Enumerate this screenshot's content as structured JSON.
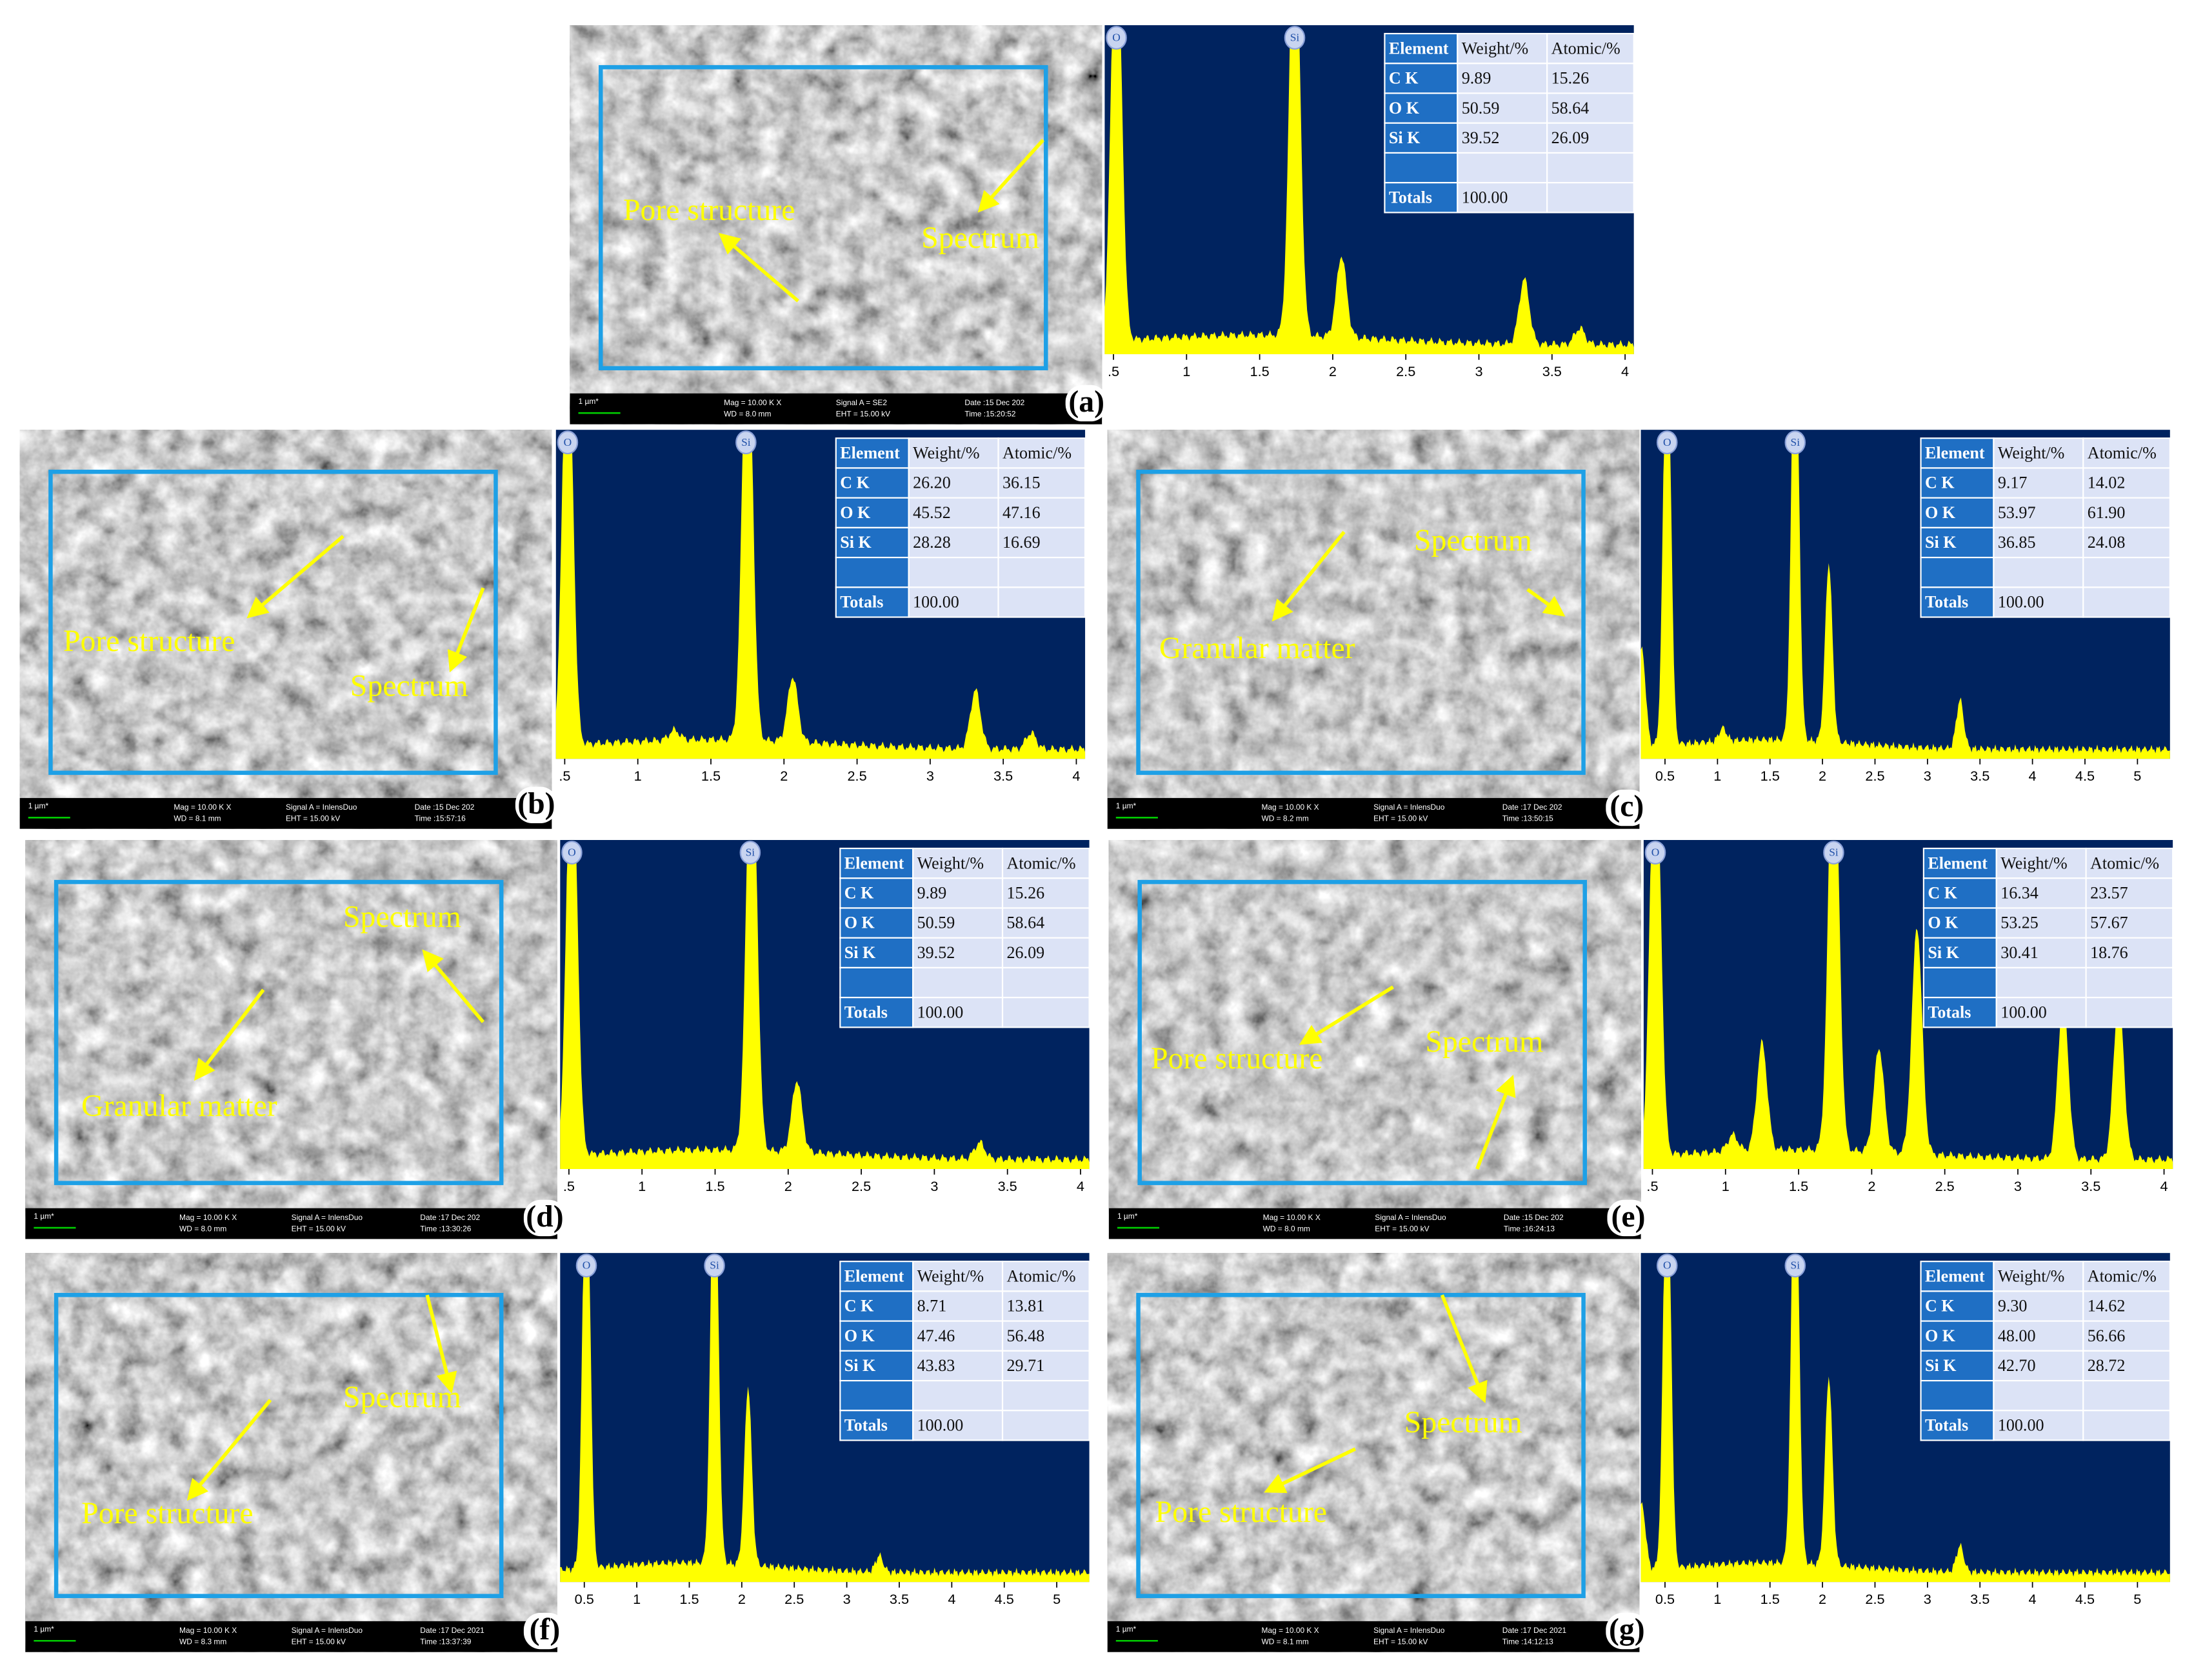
{
  "panels": [
    {
      "label": "(a)",
      "sem": {
        "scale": "1 µm*",
        "mag": "Mag =  10.00 K X",
        "wd": "WD =  8.0 mm",
        "signal": "Signal A = SE2",
        "eht": "EHT = 15.00 kV",
        "date": "Date :15 Dec 202",
        "time": "Time :15:20:52"
      },
      "annotations": [
        "Pore structure",
        "Spectrum"
      ],
      "spectrum": {
        "peak_labels": [
          "O",
          "Si"
        ],
        "xlim": [
          0.44,
          4.06
        ],
        "xticks": [
          {
            "value": 0.5,
            "label": ".5"
          },
          1,
          1.5,
          2,
          2.5,
          3,
          3.5,
          4
        ]
      },
      "table": {
        "header": [
          "Element",
          "Weight/%",
          "Atomic/%"
        ],
        "rows": [
          [
            "C K",
            "9.89",
            "15.26"
          ],
          [
            "O K",
            "50.59",
            "58.64"
          ],
          [
            "Si K",
            "39.52",
            "26.09"
          ]
        ],
        "totals": [
          "Totals",
          "100.00"
        ]
      }
    },
    {
      "label": "(b)",
      "sem": {
        "scale": "1 µm*",
        "mag": "Mag =  10.00 K X",
        "wd": "WD =  8.1 mm",
        "signal": "Signal A = InlensDuo",
        "eht": "EHT = 15.00 kV",
        "date": "Date :15 Dec 202",
        "time": "Time :15:57:16"
      },
      "annotations": [
        "Pore structure",
        "Spectrum"
      ],
      "spectrum": {
        "peak_labels": [
          "O",
          "Si"
        ],
        "xlim": [
          0.44,
          4.06
        ],
        "xticks": [
          {
            "value": 0.5,
            "label": ".5"
          },
          1,
          1.5,
          2,
          2.5,
          3,
          3.5,
          4
        ]
      },
      "table": {
        "header": [
          "Element",
          "Weight/%",
          "Atomic/%"
        ],
        "rows": [
          [
            "C K",
            "26.20",
            "36.15"
          ],
          [
            "O K",
            "45.52",
            "47.16"
          ],
          [
            "Si K",
            "28.28",
            "16.69"
          ]
        ],
        "totals": [
          "Totals",
          "100.00"
        ]
      }
    },
    {
      "label": "(c)",
      "sem": {
        "scale": "1 µm*",
        "mag": "Mag =  10.00 K X",
        "wd": "WD =  8.2 mm",
        "signal": "Signal A = InlensDuo",
        "eht": "EHT = 15.00 kV",
        "date": "Date :17 Dec 202",
        "time": "Time :13:50:15"
      },
      "annotations": [
        "Granular matter",
        "Spectrum"
      ],
      "spectrum": {
        "peak_labels": [
          "O",
          "Si"
        ],
        "xlim": [
          0.27,
          5.31
        ],
        "xticks": [
          0.5,
          1,
          1.5,
          2,
          2.5,
          3,
          3.5,
          4,
          4.5,
          5
        ]
      },
      "table": {
        "header": [
          "Element",
          "Weight/%",
          "Atomic/%"
        ],
        "rows": [
          [
            "C K",
            "9.17",
            "14.02"
          ],
          [
            "O K",
            "53.97",
            "61.90"
          ],
          [
            "Si K",
            "36.85",
            "24.08"
          ]
        ],
        "totals": [
          "Totals",
          "100.00"
        ]
      }
    },
    {
      "label": "(d)",
      "sem": {
        "scale": "1 µm*",
        "mag": "Mag =  10.00 K X",
        "wd": "WD =  8.0 mm",
        "signal": "Signal A = InlensDuo",
        "eht": "EHT = 15.00 kV",
        "date": "Date :17 Dec 202",
        "time": "Time :13:30:26"
      },
      "annotations": [
        "Spectrum",
        "Granular matter"
      ],
      "spectrum": {
        "peak_labels": [
          "O",
          "Si"
        ],
        "xlim": [
          0.44,
          4.06
        ],
        "xticks": [
          {
            "value": 0.5,
            "label": ".5"
          },
          1,
          1.5,
          2,
          2.5,
          3,
          3.5,
          4
        ]
      },
      "table": {
        "header": [
          "Element",
          "Weight/%",
          "Atomic/%"
        ],
        "rows": [
          [
            "C K",
            "9.89",
            "15.26"
          ],
          [
            "O K",
            "50.59",
            "58.64"
          ],
          [
            "Si K",
            "39.52",
            "26.09"
          ]
        ],
        "totals": [
          "Totals",
          "100.00"
        ]
      }
    },
    {
      "label": "(e)",
      "sem": {
        "scale": "1 µm*",
        "mag": "Mag =  10.00 K X",
        "wd": "WD =  8.0 mm",
        "signal": "Signal A = InlensDuo",
        "eht": "EHT = 15.00 kV",
        "date": "Date :15 Dec 202",
        "time": "Time :16:24:13"
      },
      "annotations": [
        "Pore structure",
        "Spectrum"
      ],
      "spectrum": {
        "peak_labels": [
          "O",
          "Si"
        ],
        "xlim": [
          0.44,
          4.06
        ],
        "xticks": [
          {
            "value": 0.5,
            "label": ".5"
          },
          1,
          1.5,
          2,
          2.5,
          3,
          3.5,
          4
        ]
      },
      "table": {
        "header": [
          "Element",
          "Weight/%",
          "Atomic/%"
        ],
        "rows": [
          [
            "C K",
            "16.34",
            "23.57"
          ],
          [
            "O K",
            "53.25",
            "57.67"
          ],
          [
            "Si K",
            "30.41",
            "18.76"
          ]
        ],
        "totals": [
          "Totals",
          "100.00"
        ]
      }
    },
    {
      "label": "(f)",
      "sem": {
        "scale": "1 µm*",
        "mag": "Mag =  10.00 K X",
        "wd": "WD =  8.3 mm",
        "signal": "Signal A = InlensDuo",
        "eht": "EHT = 15.00 kV",
        "date": "Date :17 Dec 2021",
        "time": "Time :13:37:39"
      },
      "annotations": [
        "Spectrum",
        "Pore structure"
      ],
      "spectrum": {
        "peak_labels": [
          "O",
          "Si"
        ],
        "xlim": [
          0.27,
          5.31
        ],
        "xticks": [
          0.5,
          1,
          1.5,
          2,
          2.5,
          3,
          3.5,
          4,
          4.5,
          5
        ]
      },
      "table": {
        "header": [
          "Element",
          "Weight/%",
          "Atomic/%"
        ],
        "rows": [
          [
            "C K",
            "8.71",
            "13.81"
          ],
          [
            "O K",
            "47.46",
            "56.48"
          ],
          [
            "Si K",
            "43.83",
            "29.71"
          ]
        ],
        "totals": [
          "Totals",
          "100.00"
        ]
      }
    },
    {
      "label": "(g)",
      "sem": {
        "scale": "1 µm*",
        "mag": "Mag =  10.00 K X",
        "wd": "WD =  8.1 mm",
        "signal": "Signal A = InlensDuo",
        "eht": "EHT = 15.00 kV",
        "date": "Date :17 Dec 2021",
        "time": "Time :14:12:13"
      },
      "annotations": [
        "Spectrum",
        "Pore structure"
      ],
      "spectrum": {
        "peak_labels": [
          "O",
          "Si"
        ],
        "xlim": [
          0.27,
          5.31
        ],
        "xticks": [
          0.5,
          1,
          1.5,
          2,
          2.5,
          3,
          3.5,
          4,
          4.5,
          5
        ]
      },
      "table": {
        "header": [
          "Element",
          "Weight/%",
          "Atomic/%"
        ],
        "rows": [
          [
            "C K",
            "9.30",
            "14.62"
          ],
          [
            "O K",
            "48.00",
            "56.66"
          ],
          [
            "Si K",
            "42.70",
            "28.72"
          ]
        ],
        "totals": [
          "Totals",
          "100.00"
        ]
      }
    }
  ]
}
